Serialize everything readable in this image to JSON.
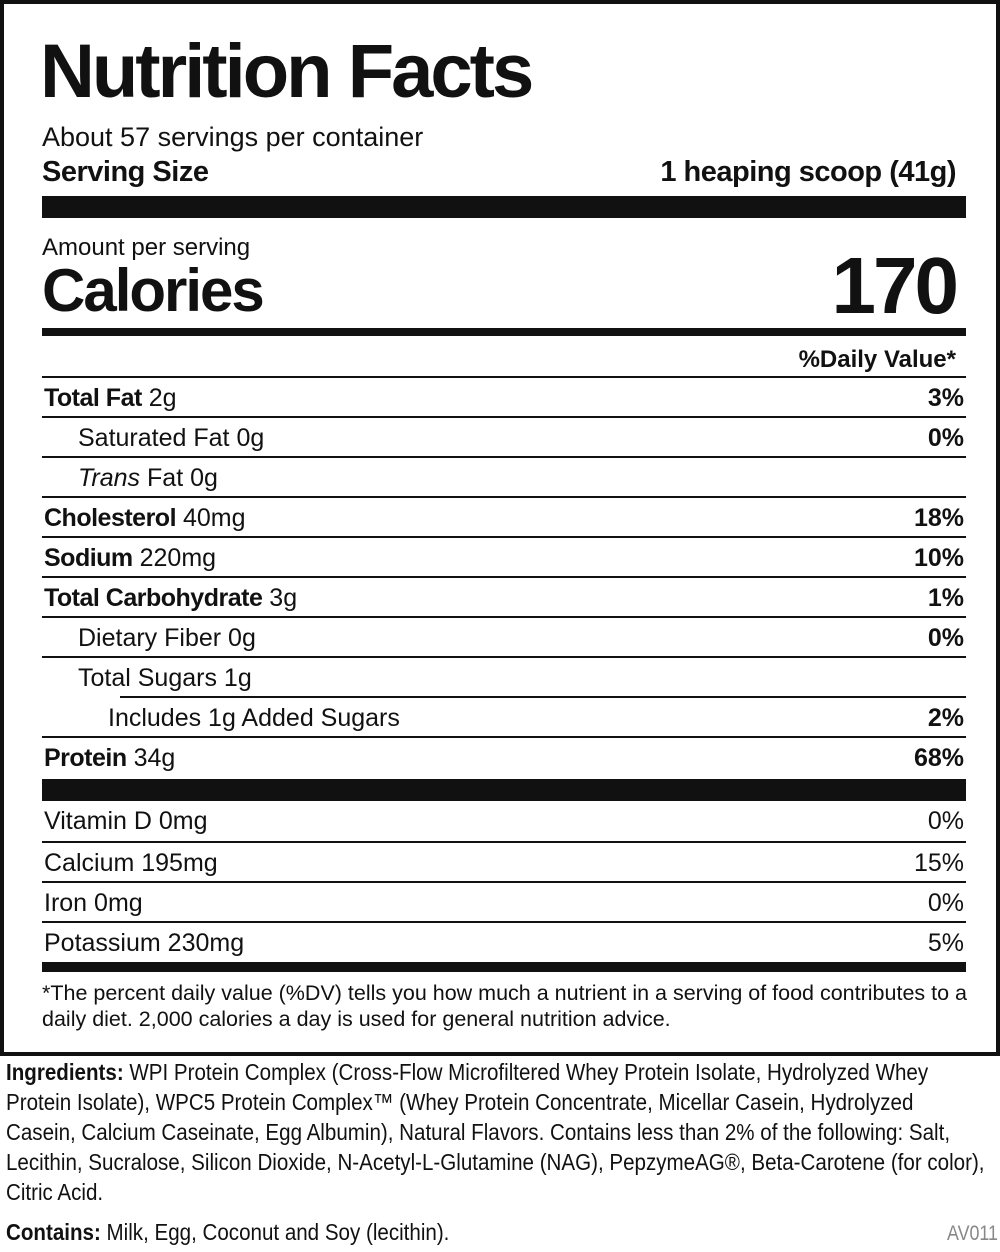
{
  "title": "Nutrition Facts",
  "servings_per_container": "About 57 servings per container",
  "serving_size_label": "Serving Size",
  "serving_size_value": "1 heaping scoop (41g)",
  "amount_per_serving": "Amount per serving",
  "calories_label": "Calories",
  "calories_value": "170",
  "daily_value_header": "%Daily Value*",
  "nutrients": [
    {
      "name": "Total Fat",
      "amount": "2g",
      "dv": "3%"
    },
    {
      "name": "Saturated Fat",
      "amount": "0g",
      "dv": "0%"
    },
    {
      "name": "Trans",
      "name_suffix": "Fat",
      "amount": "0g",
      "dv": ""
    },
    {
      "name": "Cholesterol",
      "amount": "40mg",
      "dv": "18%"
    },
    {
      "name": "Sodium",
      "amount": "220mg",
      "dv": "10%"
    },
    {
      "name": "Total Carbohydrate",
      "amount": "3g",
      "dv": "1%"
    },
    {
      "name": "Dietary Fiber",
      "amount": "0g",
      "dv": "0%"
    },
    {
      "name": "Total Sugars",
      "amount": "1g",
      "dv": ""
    },
    {
      "name": "Includes 1g Added Sugars",
      "amount": "",
      "dv": "2%"
    },
    {
      "name": "Protein",
      "amount": "34g",
      "dv": "68%"
    }
  ],
  "vitamins": [
    {
      "name": "Vitamin D",
      "amount": "0mg",
      "dv": "0%"
    },
    {
      "name": "Calcium",
      "amount": "195mg",
      "dv": "15%"
    },
    {
      "name": "Iron",
      "amount": "0mg",
      "dv": "0%"
    },
    {
      "name": "Potassium",
      "amount": "230mg",
      "dv": "5%"
    }
  ],
  "footnote": "*The percent daily value (%DV) tells you how much a nutrient in a serving of food contributes to a daily diet. 2,000 calories a day is used for general nutrition advice.",
  "ingredients_label": "Ingredients:",
  "ingredients_text": "WPI Protein Complex (Cross-Flow Microfiltered Whey Protein Isolate, Hydrolyzed Whey Protein Isolate), WPC5 Protein Complex™ (Whey Protein Concentrate, Micellar Casein, Hydrolyzed Casein, Calcium Caseinate, Egg Albumin), Natural Flavors. Contains less than 2% of the following: Salt, Lecithin,  Sucralose, Silicon Dioxide, N-Acetyl-L-Glutamine (NAG), PepzymeAG®, Beta-Carotene (for color), Citric Acid.",
  "contains_label": "Contains:",
  "contains_text": "Milk, Egg, Coconut and Soy (lecithin).",
  "code": "AV011"
}
